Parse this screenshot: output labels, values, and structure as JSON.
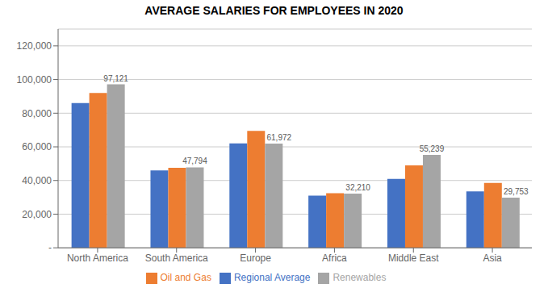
{
  "chart_data": {
    "type": "bar",
    "title": "AVERAGE SALARIES FOR EMPLOYEES IN 2020",
    "categories": [
      "North America",
      "South America",
      "Europe",
      "Africa",
      "Middle East",
      "Asia"
    ],
    "series": [
      {
        "name": "Regional Average",
        "color": "#4472C4",
        "values": [
          86000,
          46000,
          62000,
          31000,
          41000,
          33500
        ]
      },
      {
        "name": "Oil and Gas",
        "color": "#ED7D31",
        "values": [
          92000,
          47500,
          69500,
          32500,
          49000,
          38500
        ]
      },
      {
        "name": "Renewables",
        "color": "#A5A5A5",
        "values": [
          97121,
          47794,
          61972,
          32210,
          55239,
          29753
        ],
        "value_labels": [
          "97,121",
          "47,794",
          "61,972",
          "32,210",
          "55,239",
          "29,753"
        ]
      }
    ],
    "ylim": [
      0,
      130000
    ],
    "yticks": [
      {
        "value": 0,
        "label": "-"
      },
      {
        "value": 20000,
        "label": "20,000"
      },
      {
        "value": 40000,
        "label": "40,000"
      },
      {
        "value": 60000,
        "label": "60,000"
      },
      {
        "value": 80000,
        "label": "80,000"
      },
      {
        "value": 100000,
        "label": "100,000"
      },
      {
        "value": 120000,
        "label": "120,000"
      }
    ],
    "grid": true,
    "legend": "bottom"
  }
}
